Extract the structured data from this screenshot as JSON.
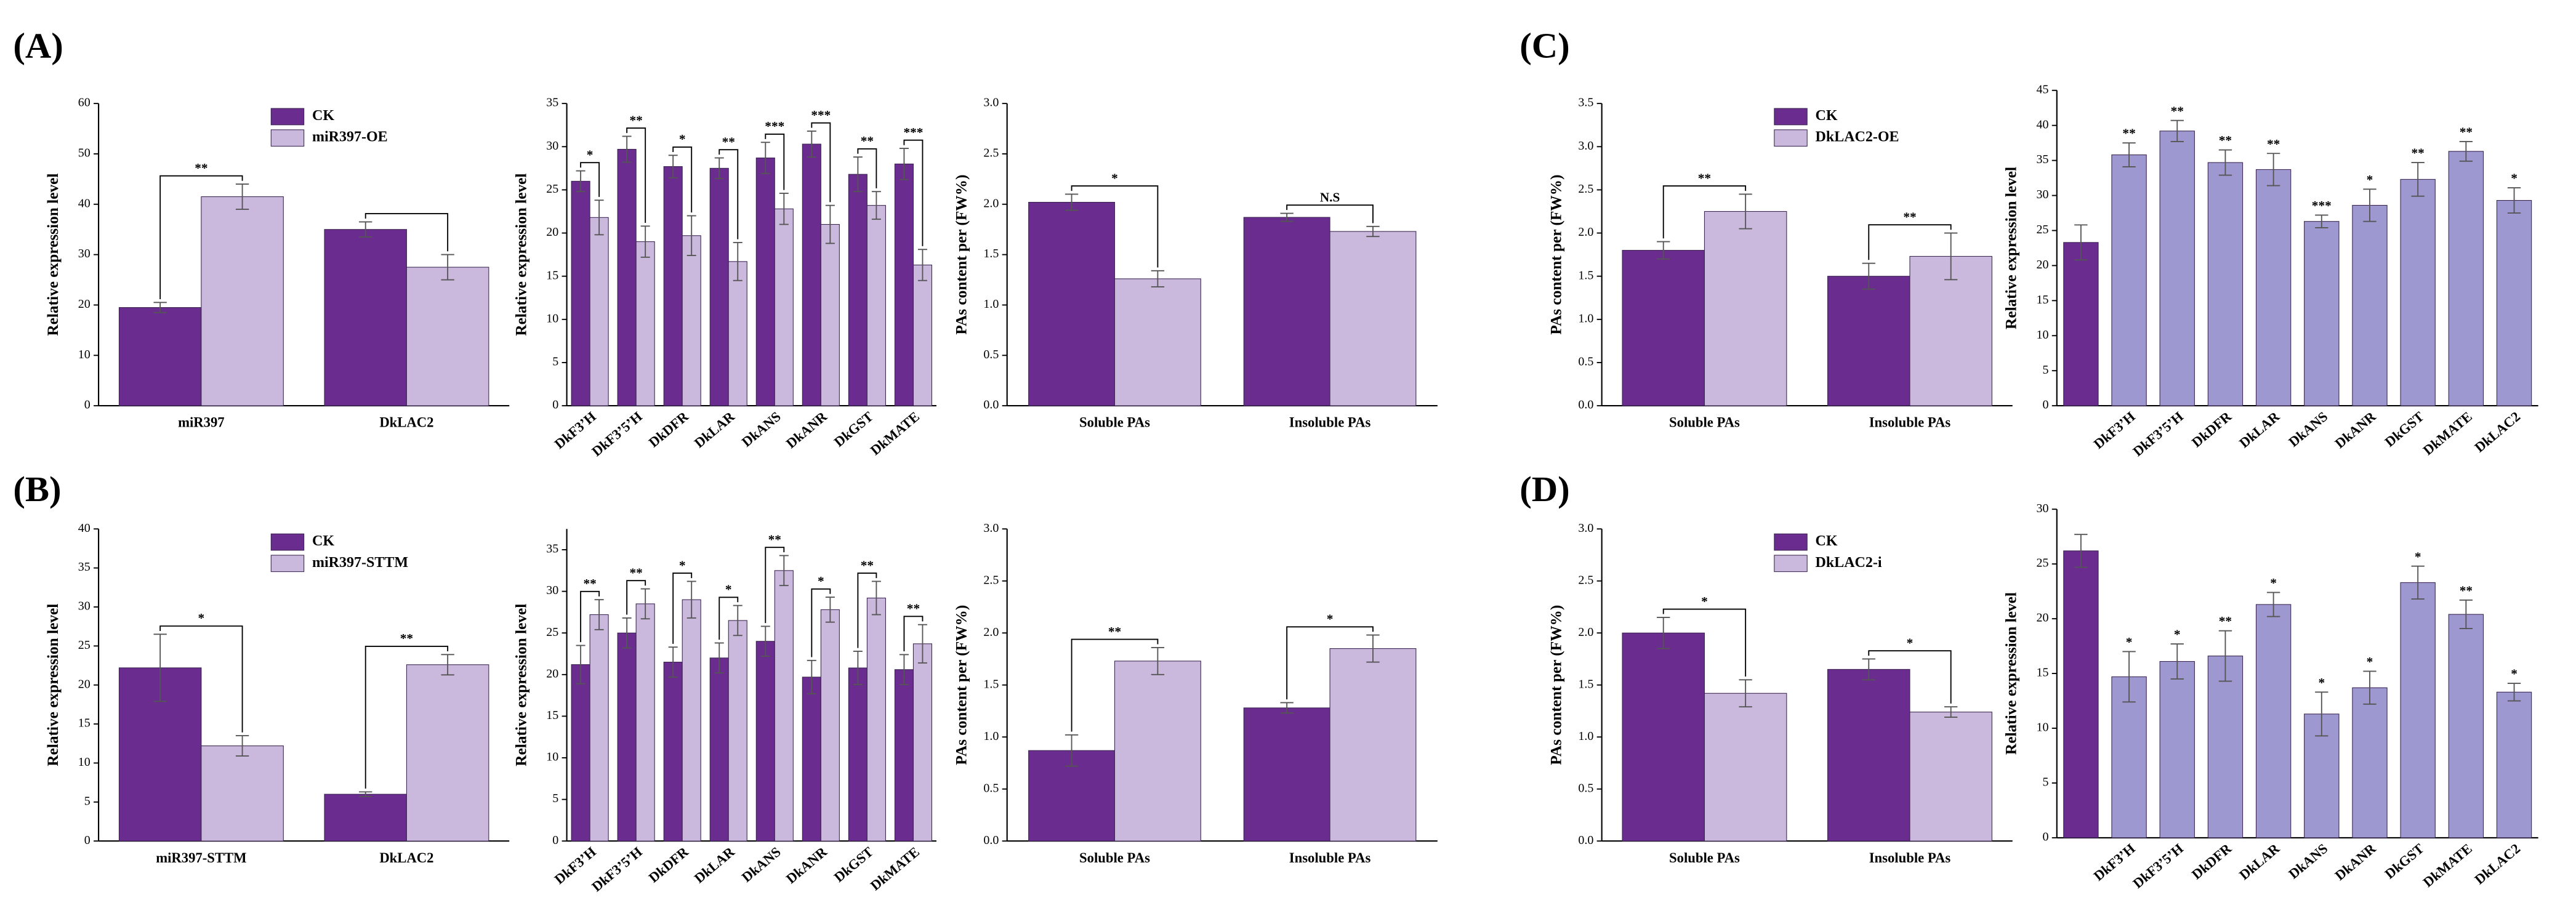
{
  "chart_data": [
    {
      "type": "bar",
      "panel": "(A)",
      "ylabel": "Relative expression level",
      "legend": "upper center",
      "categories": [
        "miR397",
        "DkLAC2"
      ],
      "series": [
        {
          "name": "CK",
          "color": "#6a2c8f",
          "values": [
            19.5,
            35
          ],
          "errors": [
            1,
            1.5
          ]
        },
        {
          "name": "miR397-OE",
          "color": "#cbb8dd",
          "values": [
            41.5,
            27.5
          ],
          "errors": [
            2.5,
            2.5
          ]
        }
      ],
      "annotations": [
        "**",
        null
      ],
      "ylim": [
        0,
        60
      ],
      "yticks": [
        0,
        10,
        20,
        30,
        40,
        50,
        60
      ]
    },
    {
      "type": "bar",
      "ylabel": "Relative expression level",
      "categories": [
        "DkF3’H",
        "DkF3’5’H",
        "DkDFR",
        "DkLAR",
        "DkANS",
        "DkANR",
        "DkGST",
        "DkMATE"
      ],
      "series": [
        {
          "color": "#6a2c8f",
          "values": [
            26,
            29.7,
            27.7,
            27.5,
            28.7,
            30.3,
            26.8,
            28
          ],
          "errors": [
            1.2,
            1.5,
            1.3,
            1.2,
            1.8,
            1.5,
            2,
            1.8
          ]
        },
        {
          "color": "#cbb8dd",
          "values": [
            21.8,
            19,
            19.7,
            16.7,
            22.8,
            21,
            23.2,
            16.3
          ],
          "errors": [
            2,
            1.8,
            2.3,
            2.2,
            1.8,
            2.2,
            1.6,
            1.8
          ]
        }
      ],
      "annotations": [
        "*",
        "**",
        "*",
        "**",
        "***",
        "***",
        "**",
        "***"
      ],
      "ylim": [
        0,
        35
      ],
      "yticks": [
        0,
        5,
        10,
        15,
        20,
        25,
        30,
        35
      ]
    },
    {
      "type": "bar",
      "ylabel": "PAs content per (FW%)",
      "categories": [
        "Soluble PAs",
        "Insoluble PAs"
      ],
      "series": [
        {
          "color": "#6a2c8f",
          "values": [
            2.02,
            1.87
          ],
          "errors": [
            0.08,
            0.04
          ]
        },
        {
          "color": "#cbb8dd",
          "values": [
            1.26,
            1.73
          ],
          "errors": [
            0.08,
            0.05
          ]
        }
      ],
      "annotations": [
        "*",
        "N.S"
      ],
      "ylim": [
        0,
        3
      ],
      "yticks": [
        {
          "value": 0,
          "label": "0.0"
        },
        0.5,
        {
          "value": 1,
          "label": "1.0"
        },
        1.5,
        {
          "value": 2,
          "label": "2.0"
        },
        2.5,
        {
          "value": 3,
          "label": "3.0"
        }
      ]
    },
    {
      "type": "bar",
      "panel": "(C)",
      "ylabel": "PAs content per (FW%)",
      "legend": "upper center",
      "categories": [
        "Soluble PAs",
        "Insoluble PAs"
      ],
      "series": [
        {
          "name": "CK",
          "color": "#6a2c8f",
          "values": [
            1.8,
            1.5
          ],
          "errors": [
            0.1,
            0.15
          ]
        },
        {
          "name": "DkLAC2-OE",
          "color": "#cbb8dd",
          "values": [
            2.25,
            1.73
          ],
          "errors": [
            0.2,
            0.27
          ]
        }
      ],
      "annotations": [
        "**",
        "**"
      ],
      "ylim": [
        0,
        3.5
      ],
      "yticks": [
        {
          "value": 0,
          "label": "0.0"
        },
        0.5,
        {
          "value": 1,
          "label": "1.0"
        },
        1.5,
        {
          "value": 2,
          "label": "2.0"
        },
        2.5,
        {
          "value": 3,
          "label": "3.0"
        },
        3.5
      ]
    },
    {
      "type": "bar",
      "ylabel": "Relative expression level",
      "categories": [
        null,
        "DkF3’H",
        "DkF3’5’H",
        "DkDFR",
        "DkLAR",
        "DkANS",
        "DkANR",
        "DkGST",
        "DkMATE",
        "DkLAC2"
      ],
      "series": [
        {
          "colors": [
            "#6a2c8f",
            "#9d98cf",
            "#9d98cf",
            "#9d98cf",
            "#9d98cf",
            "#9d98cf",
            "#9d98cf",
            "#9d98cf",
            "#9d98cf",
            "#9d98cf"
          ],
          "values": [
            23.3,
            35.8,
            39.2,
            34.7,
            33.7,
            26.3,
            28.6,
            32.3,
            36.3,
            29.3
          ],
          "errors": [
            2.5,
            1.7,
            1.5,
            1.8,
            2.3,
            0.9,
            2.3,
            2.4,
            1.4,
            1.8
          ]
        }
      ],
      "annotations": [
        null,
        "**",
        "**",
        "**",
        "**",
        "***",
        "*",
        "**",
        "**",
        "*"
      ],
      "ylim": [
        0,
        45
      ],
      "yticks": [
        0,
        5,
        10,
        15,
        20,
        25,
        30,
        35,
        40,
        45
      ]
    },
    {
      "type": "bar",
      "panel": "(B)",
      "ylabel": "Relative expression level",
      "legend": "upper center",
      "categories": [
        "miR397-STTM",
        "DkLAC2"
      ],
      "series": [
        {
          "name": "CK",
          "color": "#6a2c8f",
          "values": [
            22.2,
            6
          ],
          "errors": [
            4.3,
            0.3
          ]
        },
        {
          "name": "miR397-STTM",
          "color": "#cbb8dd",
          "values": [
            12.2,
            22.6
          ],
          "errors": [
            1.3,
            1.3
          ]
        }
      ],
      "annotations": [
        "*",
        "**"
      ],
      "ylim": [
        0,
        40
      ],
      "yticks": [
        0,
        5,
        10,
        15,
        20,
        25,
        30,
        35,
        40
      ]
    },
    {
      "type": "bar",
      "ylabel": "Relative expression level",
      "categories": [
        "DkF3’H",
        "DkF3’5’H",
        "DkDFR",
        "DkLAR",
        "DkANS",
        "DkANR",
        "DkGST",
        "DkMATE"
      ],
      "series": [
        {
          "color": "#6a2c8f",
          "values": [
            21.2,
            25,
            21.5,
            22,
            24,
            19.7,
            20.8,
            20.6
          ],
          "errors": [
            2.3,
            1.8,
            1.8,
            1.8,
            1.8,
            2,
            2,
            1.8
          ]
        },
        {
          "color": "#cbb8dd",
          "values": [
            27.2,
            28.5,
            29,
            26.5,
            32.5,
            27.8,
            29.2,
            23.7
          ],
          "errors": [
            1.8,
            1.8,
            2.2,
            1.8,
            1.8,
            1.5,
            2,
            2.3
          ]
        }
      ],
      "annotations": [
        "**",
        "**",
        "*",
        "*",
        "**",
        "*",
        "**",
        "**"
      ],
      "ylim": [
        0,
        37.5
      ],
      "yticks": [
        0,
        5,
        10,
        15,
        20,
        25,
        30,
        35
      ]
    },
    {
      "type": "bar",
      "ylabel": "PAs content per (FW%)",
      "categories": [
        "Soluble PAs",
        "Insoluble PAs"
      ],
      "series": [
        {
          "color": "#6a2c8f",
          "values": [
            0.87,
            1.28
          ],
          "errors": [
            0.15,
            0.05
          ]
        },
        {
          "color": "#cbb8dd",
          "values": [
            1.73,
            1.85
          ],
          "errors": [
            0.13,
            0.13
          ]
        }
      ],
      "annotations": [
        "**",
        "*"
      ],
      "ylim": [
        0,
        3
      ],
      "yticks": [
        {
          "value": 0,
          "label": "0.0"
        },
        0.5,
        {
          "value": 1,
          "label": "1.0"
        },
        1.5,
        {
          "value": 2,
          "label": "2.0"
        },
        2.5,
        {
          "value": 3,
          "label": "3.0"
        }
      ]
    },
    {
      "type": "bar",
      "panel": "(D)",
      "ylabel": "PAs content per (FW%)",
      "legend": "upper center",
      "categories": [
        "Soluble PAs",
        "Insoluble PAs"
      ],
      "series": [
        {
          "name": "CK",
          "color": "#6a2c8f",
          "values": [
            2.0,
            1.65
          ],
          "errors": [
            0.15,
            0.1
          ]
        },
        {
          "name": "DkLAC2-i",
          "color": "#cbb8dd",
          "values": [
            1.42,
            1.24
          ],
          "errors": [
            0.13,
            0.05
          ]
        }
      ],
      "annotations": [
        "*",
        "*"
      ],
      "ylim": [
        0,
        3
      ],
      "yticks": [
        {
          "value": 0,
          "label": "0.0"
        },
        0.5,
        {
          "value": 1,
          "label": "1.0"
        },
        1.5,
        {
          "value": 2,
          "label": "2.0"
        },
        2.5,
        {
          "value": 3,
          "label": "3.0"
        }
      ]
    },
    {
      "type": "bar",
      "ylabel": "Relative expression level",
      "categories": [
        null,
        "DkF3’H",
        "DkF3’5’H",
        "DkDFR",
        "DkLAR",
        "DkANS",
        "DkANR",
        "DkGST",
        "DkMATE",
        "DkLAC2"
      ],
      "series": [
        {
          "colors": [
            "#6a2c8f",
            "#9d98cf",
            "#9d98cf",
            "#9d98cf",
            "#9d98cf",
            "#9d98cf",
            "#9d98cf",
            "#9d98cf",
            "#9d98cf",
            "#9d98cf"
          ],
          "values": [
            26.2,
            14.7,
            16.1,
            16.6,
            21.3,
            11.3,
            13.7,
            23.3,
            20.4,
            13.3
          ],
          "errors": [
            1.5,
            2.3,
            1.6,
            2.3,
            1.1,
            2,
            1.5,
            1.5,
            1.3,
            0.8
          ]
        }
      ],
      "annotations": [
        null,
        "*",
        "*",
        "**",
        "*",
        "*",
        "*",
        "*",
        "**",
        "*"
      ],
      "ylim": [
        0,
        30
      ],
      "yticks": [
        0,
        5,
        10,
        15,
        20,
        25,
        30
      ]
    }
  ]
}
